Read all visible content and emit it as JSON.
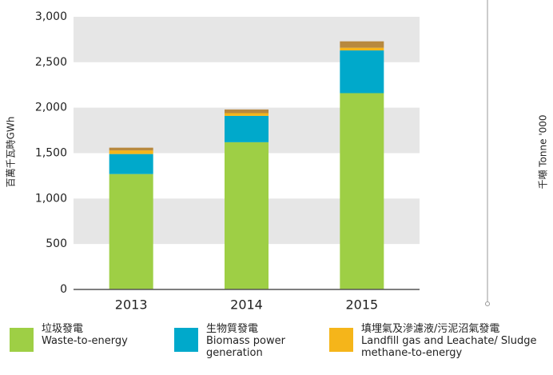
{
  "chart_data": {
    "type": "bar",
    "stacked": true,
    "ylabel": "百萬千瓦時GWh",
    "y2label": "千噸 Tonne '000",
    "categories": [
      "2013",
      "2014",
      "2015"
    ],
    "series": [
      {
        "name": "垃圾發電",
        "name_en": "Waste-to-energy",
        "color": "#9ecf45",
        "values": [
          1270,
          1620,
          2160
        ]
      },
      {
        "name": "生物質發電",
        "name_en": "Biomass power generation",
        "color": "#00a9cb",
        "values": [
          220,
          290,
          470
        ]
      },
      {
        "name": "填埋氣及滲濾液/污泥沼氣發電",
        "name_en": "Landfill gas and Leachate/ Sludge methane-to-energy",
        "color": "#f5b51a",
        "values": [
          40,
          30,
          30
        ]
      },
      {
        "color": "#b8893e",
        "values": [
          30,
          40,
          70
        ]
      }
    ],
    "ylim": [
      0,
      3000
    ],
    "yticks": [
      0,
      500,
      {
        "value": 1000,
        "label": "1,000"
      },
      {
        "value": 1500,
        "label": "1,500"
      },
      {
        "value": 2000,
        "label": "2,000"
      },
      {
        "value": 2500,
        "label": "2,500"
      },
      {
        "value": 3000,
        "label": "3,000"
      }
    ],
    "grid": "bands"
  }
}
